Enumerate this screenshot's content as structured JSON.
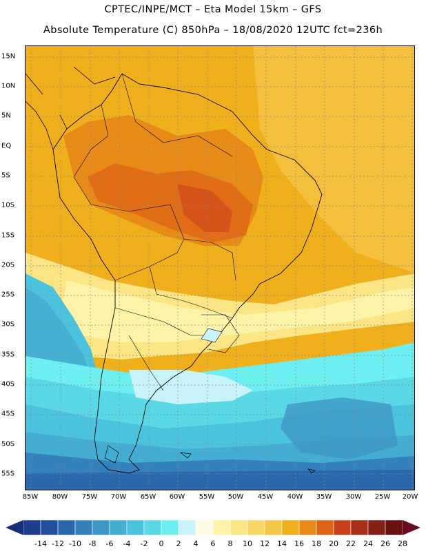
{
  "title": {
    "line1": "CPTEC/INPE/MCT –  Eta Model 15km – GFS",
    "line2": "Absolute Temperature (C) 850hPa – 18/08/2020 12UTC fct=236h"
  },
  "map": {
    "variable": "Absolute Temperature (C) 850hPa",
    "region": "South America",
    "lat_labels": [
      "15N",
      "10N",
      "5N",
      "EQ",
      "5S",
      "10S",
      "15S",
      "20S",
      "25S",
      "30S",
      "35S",
      "40S",
      "45S",
      "50S",
      "55S"
    ],
    "lon_labels": [
      "85W",
      "80W",
      "75W",
      "70W",
      "65W",
      "60W",
      "55W",
      "50W",
      "45W",
      "40W",
      "35W",
      "30W",
      "25W",
      "20W"
    ]
  },
  "legend": {
    "ticks": [
      "-14",
      "-12",
      "-10",
      "-8",
      "-6",
      "-4",
      "-2",
      "0",
      "2",
      "4",
      "6",
      "8",
      "10",
      "12",
      "14",
      "16",
      "18",
      "20",
      "22",
      "24",
      "26",
      "28"
    ],
    "colors": [
      "#1f3d8f",
      "#214f9e",
      "#2a68ad",
      "#3581bb",
      "#3c98c6",
      "#43aed1",
      "#4cc3dc",
      "#5ad8e6",
      "#6deef0",
      "#c9f3fb",
      "#fffbe6",
      "#fdf3a8",
      "#fbe585",
      "#f8d766",
      "#f4c648",
      "#f0b01e",
      "#e88a18",
      "#df6415",
      "#c9411a",
      "#a93018",
      "#842013",
      "#6a1010"
    ],
    "low_arrow_color": "#1a2f77",
    "high_arrow_color": "#6a0a1e"
  }
}
